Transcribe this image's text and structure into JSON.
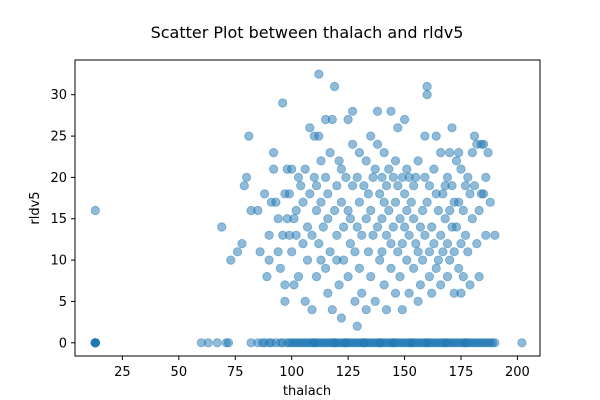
{
  "chart_data": {
    "type": "scatter",
    "title": "Scatter Plot between thalach and rldv5",
    "xlabel": "thalach",
    "ylabel": "rldv5",
    "xlim": [
      4,
      210
    ],
    "ylim": [
      -1.6,
      34.2
    ],
    "xticks": [
      25,
      50,
      75,
      100,
      125,
      150,
      175,
      200
    ],
    "yticks": [
      0,
      5,
      10,
      15,
      20,
      25,
      30
    ],
    "grid": false,
    "legend": "none",
    "color": "#1f77b4",
    "alpha": 0.5,
    "points": [
      [
        13,
        0
      ],
      [
        13,
        16
      ],
      [
        60,
        0
      ],
      [
        63,
        0
      ],
      [
        67,
        0
      ],
      [
        69,
        14
      ],
      [
        71,
        0
      ],
      [
        72,
        0
      ],
      [
        73,
        10
      ],
      [
        76,
        11
      ],
      [
        78,
        12
      ],
      [
        79,
        19
      ],
      [
        80,
        20
      ],
      [
        81,
        25
      ],
      [
        82,
        16
      ],
      [
        82,
        0
      ],
      [
        85,
        16
      ],
      [
        86,
        11
      ],
      [
        87,
        0
      ],
      [
        88,
        18
      ],
      [
        89,
        8
      ],
      [
        90,
        10
      ],
      [
        90,
        13
      ],
      [
        90,
        0
      ],
      [
        91,
        17
      ],
      [
        92,
        21
      ],
      [
        92,
        23
      ],
      [
        93,
        17
      ],
      [
        94,
        11
      ],
      [
        94,
        15
      ],
      [
        95,
        0
      ],
      [
        95,
        9
      ],
      [
        96,
        29
      ],
      [
        96,
        13
      ],
      [
        97,
        18
      ],
      [
        97,
        7
      ],
      [
        97,
        5
      ],
      [
        98,
        21
      ],
      [
        98,
        15
      ],
      [
        99,
        13
      ],
      [
        99,
        18
      ],
      [
        99,
        0
      ],
      [
        100,
        21
      ],
      [
        100,
        11
      ],
      [
        101,
        7
      ],
      [
        101,
        15
      ],
      [
        102,
        16
      ],
      [
        102,
        13
      ],
      [
        103,
        20
      ],
      [
        103,
        8
      ],
      [
        104,
        0
      ],
      [
        104,
        19
      ],
      [
        105,
        12
      ],
      [
        105,
        17
      ],
      [
        106,
        21
      ],
      [
        106,
        5
      ],
      [
        107,
        14
      ],
      [
        107,
        10
      ],
      [
        108,
        26
      ],
      [
        108,
        18
      ],
      [
        109,
        13
      ],
      [
        109,
        4
      ],
      [
        110,
        25
      ],
      [
        110,
        20
      ],
      [
        110,
        0
      ],
      [
        111,
        19
      ],
      [
        111,
        16
      ],
      [
        111,
        8
      ],
      [
        112,
        32.5
      ],
      [
        112,
        25
      ],
      [
        112,
        12
      ],
      [
        113,
        17
      ],
      [
        113,
        22
      ],
      [
        113,
        10
      ],
      [
        114,
        0
      ],
      [
        114,
        14
      ],
      [
        115,
        27
      ],
      [
        115,
        20
      ],
      [
        115,
        9
      ],
      [
        116,
        18
      ],
      [
        116,
        15
      ],
      [
        116,
        6
      ],
      [
        117,
        23
      ],
      [
        117,
        11
      ],
      [
        118,
        27
      ],
      [
        118,
        4
      ],
      [
        119,
        31
      ],
      [
        119,
        16
      ],
      [
        119,
        0
      ],
      [
        120,
        19
      ],
      [
        120,
        13
      ],
      [
        120,
        10
      ],
      [
        121,
        22
      ],
      [
        121,
        7
      ],
      [
        122,
        17
      ],
      [
        122,
        21
      ],
      [
        122,
        3
      ],
      [
        123,
        14
      ],
      [
        123,
        10
      ],
      [
        124,
        20
      ],
      [
        124,
        0
      ],
      [
        125,
        27
      ],
      [
        125,
        16
      ],
      [
        125,
        8
      ],
      [
        126,
        15
      ],
      [
        126,
        12
      ],
      [
        127,
        28
      ],
      [
        127,
        24
      ],
      [
        127,
        19
      ],
      [
        128,
        11
      ],
      [
        128,
        5
      ],
      [
        129,
        20
      ],
      [
        129,
        14
      ],
      [
        129,
        2
      ],
      [
        130,
        17
      ],
      [
        130,
        23
      ],
      [
        130,
        9
      ],
      [
        131,
        13
      ],
      [
        131,
        6
      ],
      [
        132,
        19
      ],
      [
        132,
        0
      ],
      [
        133,
        22
      ],
      [
        133,
        15
      ],
      [
        133,
        4
      ],
      [
        134,
        18
      ],
      [
        134,
        11
      ],
      [
        135,
        25
      ],
      [
        135,
        16
      ],
      [
        135,
        8
      ],
      [
        136,
        20
      ],
      [
        136,
        13
      ],
      [
        137,
        21
      ],
      [
        137,
        5
      ],
      [
        138,
        28
      ],
      [
        138,
        24
      ],
      [
        138,
        14
      ],
      [
        139,
        18
      ],
      [
        139,
        10
      ],
      [
        139,
        0
      ],
      [
        140,
        20
      ],
      [
        140,
        15
      ],
      [
        140,
        11
      ],
      [
        141,
        17
      ],
      [
        141,
        23
      ],
      [
        141,
        7
      ],
      [
        142,
        19
      ],
      [
        142,
        13
      ],
      [
        142,
        4
      ],
      [
        143,
        21
      ],
      [
        143,
        16
      ],
      [
        144,
        28
      ],
      [
        144,
        12
      ],
      [
        144,
        9
      ],
      [
        145,
        20
      ],
      [
        145,
        14
      ],
      [
        145,
        0
      ],
      [
        146,
        17
      ],
      [
        146,
        22
      ],
      [
        146,
        6
      ],
      [
        147,
        26
      ],
      [
        147,
        19
      ],
      [
        147,
        11
      ],
      [
        148,
        15
      ],
      [
        148,
        8
      ],
      [
        149,
        20
      ],
      [
        149,
        12
      ],
      [
        149,
        4
      ],
      [
        150,
        27
      ],
      [
        150,
        18
      ],
      [
        150,
        14
      ],
      [
        151,
        16
      ],
      [
        151,
        21
      ],
      [
        151,
        10
      ],
      [
        152,
        20
      ],
      [
        152,
        13
      ],
      [
        152,
        6
      ],
      [
        153,
        17
      ],
      [
        153,
        0
      ],
      [
        154,
        19
      ],
      [
        154,
        15
      ],
      [
        154,
        9
      ],
      [
        155,
        20
      ],
      [
        155,
        12
      ],
      [
        156,
        22
      ],
      [
        156,
        11
      ],
      [
        156,
        5
      ],
      [
        157,
        14
      ],
      [
        157,
        7
      ],
      [
        158,
        16
      ],
      [
        158,
        10
      ],
      [
        159,
        25
      ],
      [
        159,
        20
      ],
      [
        159,
        13
      ],
      [
        160,
        31
      ],
      [
        160,
        30
      ],
      [
        160,
        17
      ],
      [
        160,
        0
      ],
      [
        161,
        19
      ],
      [
        161,
        11
      ],
      [
        161,
        8
      ],
      [
        162,
        14
      ],
      [
        162,
        6
      ],
      [
        163,
        21
      ],
      [
        163,
        12
      ],
      [
        164,
        25
      ],
      [
        164,
        18
      ],
      [
        164,
        9
      ],
      [
        165,
        16
      ],
      [
        165,
        10
      ],
      [
        166,
        23
      ],
      [
        166,
        13
      ],
      [
        166,
        7
      ],
      [
        167,
        18
      ],
      [
        167,
        11
      ],
      [
        168,
        19
      ],
      [
        168,
        15
      ],
      [
        168,
        0
      ],
      [
        169,
        20
      ],
      [
        169,
        12
      ],
      [
        169,
        8
      ],
      [
        170,
        23
      ],
      [
        170,
        16
      ],
      [
        170,
        10
      ],
      [
        171,
        26
      ],
      [
        171,
        19
      ],
      [
        171,
        14
      ],
      [
        172,
        17
      ],
      [
        172,
        11
      ],
      [
        172,
        6
      ],
      [
        173,
        22
      ],
      [
        173,
        14
      ],
      [
        174,
        23
      ],
      [
        174,
        17
      ],
      [
        174,
        9
      ],
      [
        175,
        21
      ],
      [
        175,
        12
      ],
      [
        175,
        6
      ],
      [
        176,
        16
      ],
      [
        176,
        8
      ],
      [
        177,
        19
      ],
      [
        177,
        13
      ],
      [
        177,
        0
      ],
      [
        178,
        20
      ],
      [
        178,
        11
      ],
      [
        179,
        18
      ],
      [
        179,
        7
      ],
      [
        180,
        23
      ],
      [
        180,
        15
      ],
      [
        181,
        25
      ],
      [
        181,
        19
      ],
      [
        182,
        24
      ],
      [
        182,
        12
      ],
      [
        183,
        16
      ],
      [
        183,
        8
      ],
      [
        184,
        24
      ],
      [
        184,
        18
      ],
      [
        185,
        24
      ],
      [
        185,
        18
      ],
      [
        186,
        20
      ],
      [
        186,
        13
      ],
      [
        187,
        23
      ],
      [
        188,
        17
      ],
      [
        190,
        13
      ],
      [
        190,
        0
      ],
      [
        202,
        0
      ]
    ],
    "zero_row_x": [
      85,
      88,
      91,
      93,
      96,
      98,
      100,
      101,
      102,
      103,
      105,
      106,
      107,
      108,
      109,
      110,
      111,
      112,
      113,
      115,
      116,
      117,
      118,
      119,
      120,
      121,
      122,
      123,
      124,
      125,
      126,
      127,
      128,
      129,
      130,
      131,
      132,
      133,
      134,
      135,
      136,
      137,
      138,
      139,
      140,
      141,
      142,
      143,
      144,
      145,
      146,
      147,
      148,
      149,
      150,
      151,
      152,
      153,
      154,
      155,
      156,
      157,
      158,
      159,
      160,
      161,
      162,
      163,
      164,
      165,
      166,
      167,
      168,
      169,
      170,
      171,
      172,
      173,
      174,
      175,
      176,
      177,
      178,
      179,
      180,
      181,
      182,
      183,
      184,
      185,
      186,
      187,
      188,
      189
    ]
  }
}
